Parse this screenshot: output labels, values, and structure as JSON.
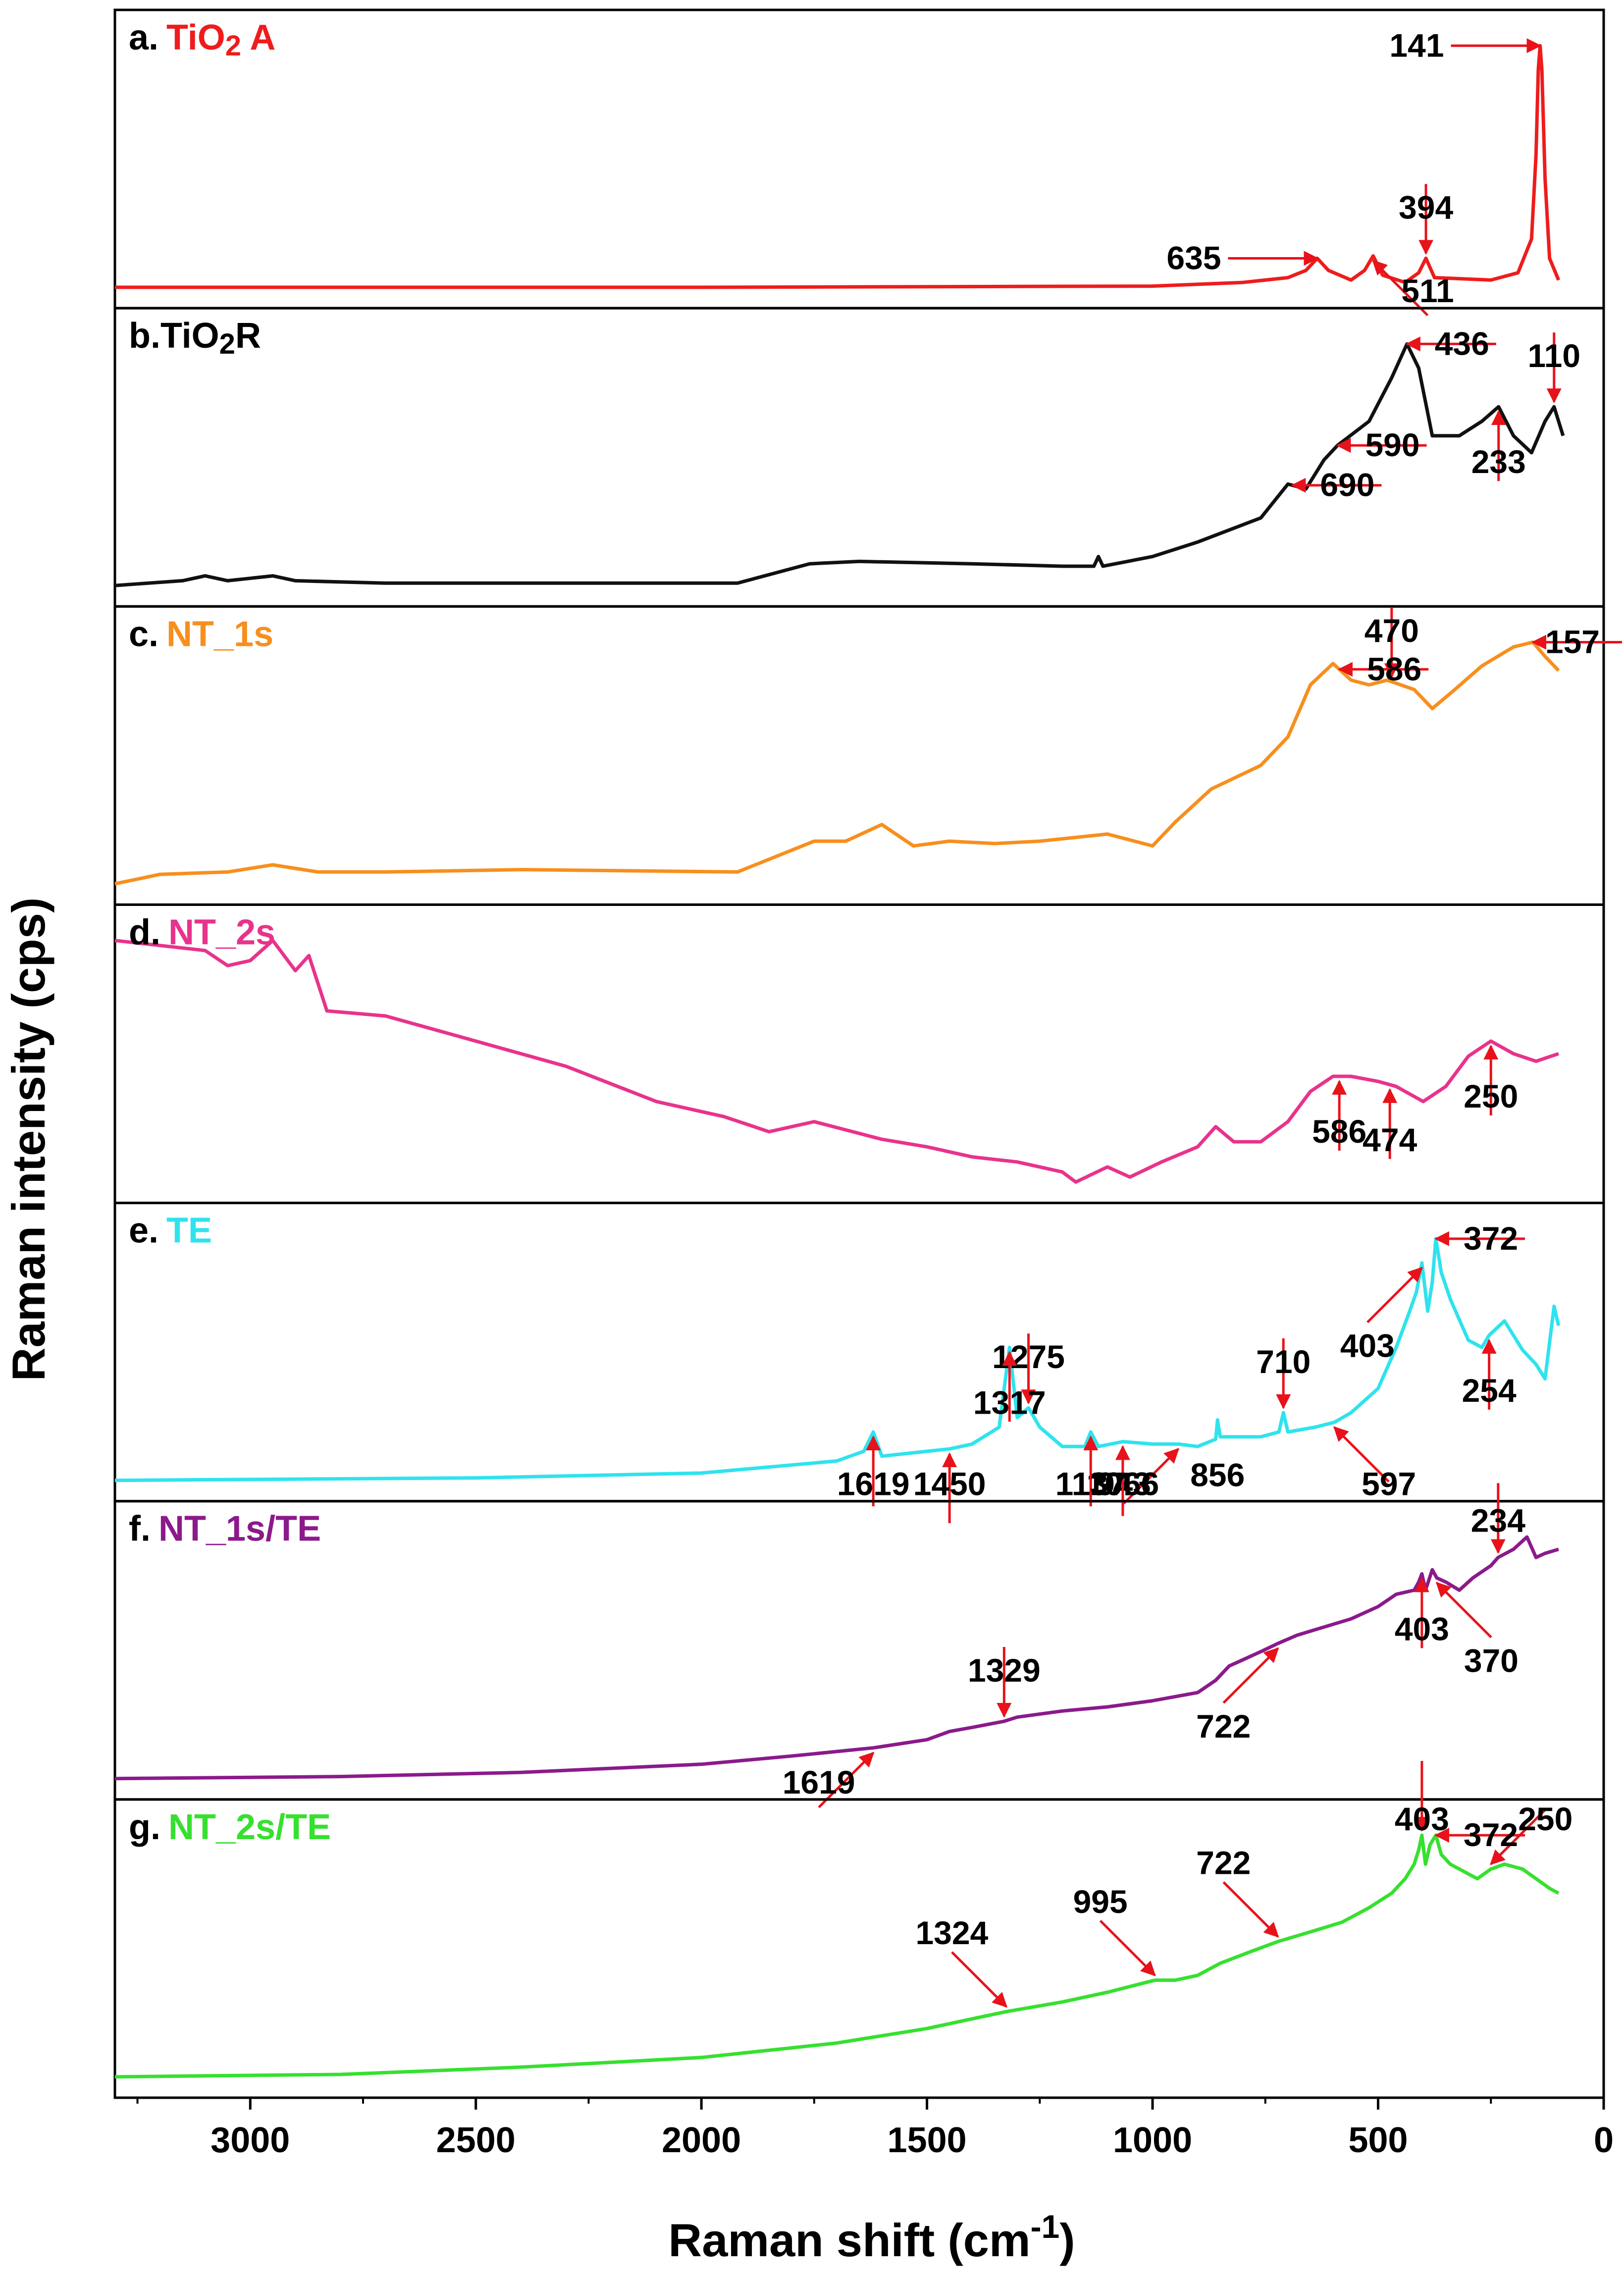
{
  "chart_data": {
    "type": "line",
    "title": "",
    "xlabel": "Raman shift (cm",
    "xlabel_sup": "-1",
    "xlabel_close": ")",
    "ylabel": "Raman intensity (cps)",
    "xlim": [
      3300,
      0
    ],
    "xticks": [
      3000,
      2500,
      2000,
      1500,
      1000,
      500,
      0
    ],
    "arrow_color": "#e8121b",
    "panels": [
      {
        "id": "a",
        "letter": "a.",
        "name_html": "TiO<tspan baseline-shift='-12' font-size='58'>2</tspan> A",
        "name": "TiO2 A",
        "color": "#ee1c1c",
        "x": [
          3300,
          2000,
          1000,
          800,
          700,
          660,
          635,
          610,
          560,
          530,
          511,
          490,
          440,
          410,
          394,
          375,
          250,
          190,
          160,
          150,
          145,
          141,
          137,
          130,
          120,
          100
        ],
        "y": [
          0.0,
          0.0,
          0.005,
          0.02,
          0.04,
          0.07,
          0.12,
          0.07,
          0.03,
          0.07,
          0.13,
          0.05,
          0.02,
          0.06,
          0.12,
          0.04,
          0.03,
          0.06,
          0.2,
          0.55,
          0.9,
          1.0,
          0.9,
          0.45,
          0.12,
          0.03
        ],
        "peaks": [
          {
            "label": "141",
            "x": 141,
            "arrow": "left"
          },
          {
            "label": "394",
            "x": 394,
            "arrow": "up"
          },
          {
            "label": "511",
            "x": 511,
            "arrow": "upleft"
          },
          {
            "label": "635",
            "x": 635,
            "arrow": "left"
          }
        ]
      },
      {
        "id": "b",
        "letter": "b.",
        "name_html": "TiO<tspan baseline-shift='-12' font-size='58'>2</tspan>R",
        "name": "TiO2R",
        "color": "#111111",
        "x": [
          3300,
          3150,
          3100,
          3050,
          2950,
          2900,
          2700,
          2300,
          1920,
          1760,
          1650,
          1400,
          1200,
          1130,
          1120,
          1110,
          1000,
          900,
          760,
          700,
          660,
          620,
          590,
          520,
          470,
          436,
          410,
          380,
          320,
          270,
          233,
          200,
          160,
          130,
          110,
          90
        ],
        "y": [
          0.0,
          0.02,
          0.04,
          0.02,
          0.04,
          0.02,
          0.01,
          0.01,
          0.01,
          0.09,
          0.1,
          0.09,
          0.08,
          0.08,
          0.12,
          0.08,
          0.12,
          0.18,
          0.28,
          0.42,
          0.4,
          0.52,
          0.58,
          0.68,
          0.86,
          1.0,
          0.9,
          0.62,
          0.62,
          0.68,
          0.74,
          0.62,
          0.55,
          0.68,
          0.74,
          0.62
        ],
        "peaks": [
          {
            "label": "110",
            "x": 110,
            "arrow": "up"
          },
          {
            "label": "233",
            "x": 233,
            "arrow": "down"
          },
          {
            "label": "436",
            "x": 436,
            "arrow": "right"
          },
          {
            "label": "590",
            "x": 590,
            "arrow": "right"
          },
          {
            "label": "690",
            "x": 690,
            "arrow": "right"
          }
        ]
      },
      {
        "id": "c",
        "letter": "c.",
        "name_html": "NT_1s",
        "name": "NT_1s",
        "color": "#f78f1e",
        "x": [
          3300,
          3200,
          3050,
          2950,
          2850,
          2700,
          2400,
          1920,
          1750,
          1680,
          1600,
          1530,
          1450,
          1350,
          1250,
          1100,
          1000,
          950,
          870,
          760,
          700,
          650,
          600,
          560,
          520,
          480,
          420,
          380,
          330,
          270,
          200,
          157,
          130,
          100
        ],
        "y": [
          0.0,
          0.04,
          0.05,
          0.08,
          0.05,
          0.05,
          0.06,
          0.05,
          0.18,
          0.18,
          0.25,
          0.16,
          0.18,
          0.17,
          0.18,
          0.21,
          0.16,
          0.26,
          0.4,
          0.5,
          0.62,
          0.84,
          0.93,
          0.86,
          0.84,
          0.86,
          0.82,
          0.74,
          0.82,
          0.92,
          1.0,
          1.02,
          0.96,
          0.9
        ],
        "peaks": [
          {
            "label": "157",
            "x": 157,
            "arrow": "right"
          },
          {
            "label": "470",
            "x": 470,
            "arrow": "up"
          },
          {
            "label": "586",
            "x": 586,
            "arrow": "right"
          }
        ]
      },
      {
        "id": "d",
        "letter": "d.",
        "name_html": "NT_2s",
        "name": "NT_2s",
        "color": "#e8338c",
        "x": [
          3300,
          3200,
          3100,
          3050,
          3000,
          2950,
          2900,
          2870,
          2830,
          2700,
          2500,
          2300,
          2100,
          1950,
          1850,
          1750,
          1600,
          1500,
          1400,
          1300,
          1200,
          1170,
          1100,
          1050,
          980,
          900,
          860,
          820,
          760,
          700,
          650,
          600,
          560,
          500,
          460,
          400,
          350,
          300,
          250,
          200,
          150,
          100
        ],
        "y": [
          1.0,
          0.98,
          0.96,
          0.9,
          0.92,
          1.0,
          0.88,
          0.94,
          0.72,
          0.7,
          0.6,
          0.5,
          0.36,
          0.3,
          0.24,
          0.28,
          0.21,
          0.18,
          0.14,
          0.12,
          0.08,
          0.04,
          0.1,
          0.06,
          0.12,
          0.18,
          0.26,
          0.2,
          0.2,
          0.28,
          0.4,
          0.46,
          0.46,
          0.44,
          0.42,
          0.36,
          0.42,
          0.54,
          0.6,
          0.55,
          0.52,
          0.55
        ],
        "peaks": [
          {
            "label": "250",
            "x": 250,
            "arrow": "down"
          },
          {
            "label": "474",
            "x": 474,
            "arrow": "down"
          },
          {
            "label": "586",
            "x": 586,
            "arrow": "down"
          }
        ]
      },
      {
        "id": "e",
        "letter": "e.",
        "name_html": "TE",
        "name": "TE",
        "color": "#2ee3ee",
        "x": [
          3300,
          2500,
          2000,
          1700,
          1640,
          1619,
          1600,
          1500,
          1450,
          1400,
          1340,
          1317,
          1300,
          1275,
          1250,
          1200,
          1150,
          1137,
          1120,
          1066,
          1000,
          943,
          900,
          860,
          856,
          850,
          760,
          720,
          710,
          700,
          640,
          597,
          560,
          500,
          460,
          430,
          415,
          403,
          390,
          380,
          372,
          360,
          340,
          300,
          270,
          254,
          220,
          180,
          150,
          130,
          110,
          100
        ],
        "y": [
          0.0,
          0.01,
          0.03,
          0.08,
          0.12,
          0.2,
          0.1,
          0.12,
          0.13,
          0.15,
          0.22,
          0.55,
          0.26,
          0.3,
          0.22,
          0.14,
          0.14,
          0.2,
          0.14,
          0.16,
          0.15,
          0.15,
          0.14,
          0.17,
          0.25,
          0.18,
          0.18,
          0.2,
          0.28,
          0.2,
          0.22,
          0.24,
          0.28,
          0.38,
          0.55,
          0.7,
          0.78,
          0.9,
          0.7,
          0.82,
          1.0,
          0.86,
          0.75,
          0.58,
          0.55,
          0.6,
          0.66,
          0.54,
          0.48,
          0.42,
          0.72,
          0.64
        ],
        "peaks": [
          {
            "label": "254",
            "x": 254,
            "arrow": "down"
          },
          {
            "label": "372",
            "x": 372,
            "arrow": "right"
          },
          {
            "label": "403",
            "x": 403,
            "arrow": "upright"
          },
          {
            "label": "597",
            "x": 597,
            "arrow": "upleft"
          },
          {
            "label": "710",
            "x": 710,
            "arrow": "up"
          },
          {
            "label": "856",
            "x": 856,
            "arrow": "none"
          },
          {
            "label": "943",
            "x": 943,
            "arrow": "upright"
          },
          {
            "label": "1066",
            "x": 1066,
            "arrow": "down"
          },
          {
            "label": "1137",
            "x": 1137,
            "arrow": "down"
          },
          {
            "label": "1275",
            "x": 1275,
            "arrow": "up"
          },
          {
            "label": "1317",
            "x": 1317,
            "arrow": "down"
          },
          {
            "label": "1450",
            "x": 1450,
            "arrow": "down"
          },
          {
            "label": "1619",
            "x": 1619,
            "arrow": "down"
          }
        ]
      },
      {
        "id": "f",
        "letter": "f.",
        "name_html": "NT_1s/TE",
        "name": "NT_1s/TE",
        "color": "#8b1a8b",
        "x": [
          3300,
          2800,
          2400,
          2000,
          1800,
          1619,
          1500,
          1450,
          1400,
          1329,
          1300,
          1200,
          1100,
          1000,
          900,
          860,
          830,
          800,
          760,
          722,
          680,
          620,
          560,
          500,
          460,
          420,
          410,
          403,
          395,
          380,
          370,
          350,
          320,
          290,
          250,
          234,
          200,
          170,
          150,
          130,
          100
        ],
        "y": [
          0.0,
          0.01,
          0.03,
          0.07,
          0.11,
          0.15,
          0.19,
          0.23,
          0.25,
          0.28,
          0.3,
          0.33,
          0.35,
          0.38,
          0.42,
          0.48,
          0.55,
          0.58,
          0.62,
          0.66,
          0.7,
          0.74,
          0.78,
          0.84,
          0.9,
          0.92,
          0.96,
          1.0,
          0.92,
          1.02,
          0.98,
          0.96,
          0.92,
          0.98,
          1.04,
          1.08,
          1.12,
          1.18,
          1.08,
          1.1,
          1.12
        ],
        "peaks": [
          {
            "label": "234",
            "x": 234,
            "arrow": "up"
          },
          {
            "label": "370",
            "x": 370,
            "arrow": "upleft"
          },
          {
            "label": "403",
            "x": 403,
            "arrow": "down"
          },
          {
            "label": "722",
            "x": 722,
            "arrow": "upright"
          },
          {
            "label": "1329",
            "x": 1329,
            "arrow": "up"
          },
          {
            "label": "1619",
            "x": 1619,
            "arrow": "upright"
          }
        ]
      },
      {
        "id": "g",
        "letter": "g.",
        "name_html": "NT_2s/TE",
        "name": "NT_2s/TE",
        "color": "#36e02f",
        "x": [
          3300,
          2800,
          2400,
          2000,
          1700,
          1500,
          1400,
          1324,
          1200,
          1100,
          995,
          950,
          900,
          850,
          780,
          722,
          650,
          580,
          520,
          470,
          440,
          420,
          410,
          403,
          395,
          385,
          372,
          360,
          340,
          300,
          280,
          250,
          220,
          180,
          150,
          120,
          100
        ],
        "y": [
          0.0,
          0.01,
          0.04,
          0.08,
          0.14,
          0.2,
          0.24,
          0.27,
          0.31,
          0.35,
          0.4,
          0.4,
          0.42,
          0.47,
          0.52,
          0.56,
          0.6,
          0.64,
          0.7,
          0.76,
          0.82,
          0.88,
          0.94,
          1.0,
          0.88,
          0.96,
          1.0,
          0.92,
          0.88,
          0.84,
          0.82,
          0.86,
          0.88,
          0.86,
          0.82,
          0.78,
          0.76
        ],
        "peaks": [
          {
            "label": "250",
            "x": 250,
            "arrow": "downleft"
          },
          {
            "label": "372",
            "x": 372,
            "arrow": "right"
          },
          {
            "label": "403",
            "x": 403,
            "arrow": "up"
          },
          {
            "label": "722",
            "x": 722,
            "arrow": "downright"
          },
          {
            "label": "995",
            "x": 995,
            "arrow": "downright"
          },
          {
            "label": "1324",
            "x": 1324,
            "arrow": "downright"
          }
        ]
      }
    ]
  }
}
